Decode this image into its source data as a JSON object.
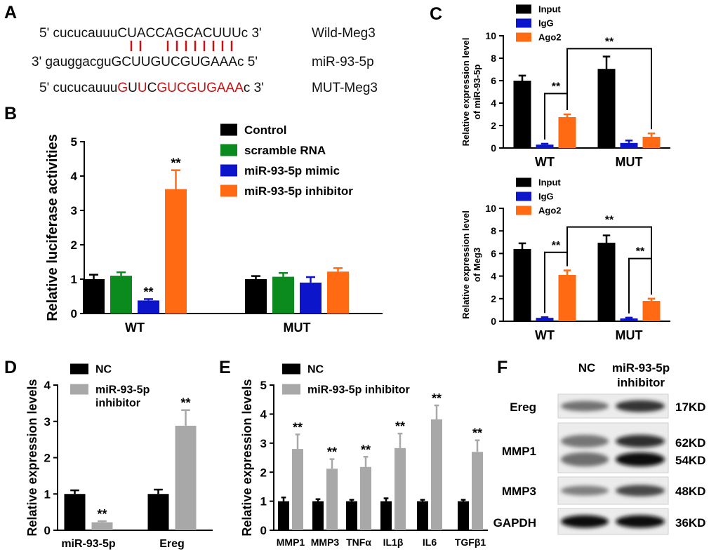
{
  "colors": {
    "black": "#000000",
    "green": "#0b8a1e",
    "blue": "#0c15c9",
    "orange": "#ff6a13",
    "gray": "#a8a8a8",
    "red_seq": "#c01515",
    "seq_text": "#111111"
  },
  "panel_a": {
    "letter": "A",
    "rows": [
      {
        "prefix": "5' cucucauuu",
        "segments": [
          {
            "t": "CUACCAGCACUUU",
            "red": false
          },
          {
            "t": "c",
            "red": false
          }
        ],
        "suffix": " 3'",
        "name": "Wild-Meg3"
      },
      {
        "prefix": "3' gauggacgu",
        "segments": [
          {
            "t": "GCUUGUCGUGAAA",
            "red": false
          },
          {
            "t": "c",
            "red": false
          }
        ],
        "suffix": " 5'",
        "name": "miR-93-5p"
      },
      {
        "prefix": "5' cucucauuu",
        "segments": [
          {
            "t": "G",
            "red": true
          },
          {
            "t": "U",
            "red": false
          },
          {
            "t": "U",
            "red": true
          },
          {
            "t": "C",
            "red": false
          },
          {
            "t": "GUCGUGAAA",
            "red": true
          },
          {
            "t": "c",
            "red": false
          }
        ],
        "suffix": " 3'",
        "name": "MUT-Meg3"
      }
    ],
    "pairing_positions": [
      0,
      1,
      4,
      5,
      6,
      7,
      8,
      9,
      10,
      11
    ]
  },
  "panel_f": {
    "letter": "F",
    "columns": [
      "NC",
      "miR-93-5p",
      "inhibitor"
    ],
    "rows": [
      {
        "protein": "Ereg",
        "sizes": [
          "17KD"
        ],
        "nc": 0.45,
        "inh": 0.8
      },
      {
        "protein": "MMP1",
        "sizes": [
          "62KD",
          "54KD"
        ],
        "nc": 0.5,
        "inh": 1.0
      },
      {
        "protein": "MMP3",
        "sizes": [
          "48KD"
        ],
        "nc": 0.35,
        "inh": 0.7
      },
      {
        "protein": "GAPDH",
        "sizes": [
          "36KD"
        ],
        "nc": 1.0,
        "inh": 1.0
      }
    ]
  },
  "chart_data": [
    {
      "panel": "B",
      "type": "bar",
      "title": "",
      "xlabel": "",
      "ylabel": "Relative luciferase activities",
      "ylim": [
        0,
        5
      ],
      "yticks": [
        "0",
        "1",
        "2",
        "3",
        "4",
        "5"
      ],
      "categories": [
        "WT",
        "MUT"
      ],
      "legend_position": "top-right",
      "series": [
        {
          "name": "Control",
          "color": "#000000",
          "values": [
            1.0,
            1.0
          ],
          "errors": [
            0.13,
            0.09
          ]
        },
        {
          "name": "scramble RNA",
          "color": "#0b8a1e",
          "values": [
            1.1,
            1.07
          ],
          "errors": [
            0.1,
            0.11
          ]
        },
        {
          "name": "miR-93-5p mimic",
          "color": "#0c15c9",
          "values": [
            0.38,
            0.9
          ],
          "errors": [
            0.04,
            0.16
          ]
        },
        {
          "name": "miR-93-5p inhibitor",
          "color": "#ff6a13",
          "values": [
            3.62,
            1.22
          ],
          "errors": [
            0.55,
            0.1
          ]
        }
      ],
      "significance": [
        {
          "text": "**",
          "category": 0,
          "series": 2
        },
        {
          "text": "**",
          "category": 0,
          "series": 3
        }
      ],
      "brackets": []
    },
    {
      "panel": "C",
      "type": "bar",
      "title": "",
      "xlabel": "",
      "ylabel": "Relative expression level of miR-93-5p",
      "ylim": [
        0,
        10
      ],
      "yticks": [
        "0",
        "2",
        "4",
        "6",
        "8",
        "10"
      ],
      "categories": [
        "WT",
        "MUT"
      ],
      "legend_position": "top-left",
      "series": [
        {
          "name": "Input",
          "color": "#000000",
          "values": [
            6.0,
            7.05
          ],
          "errors": [
            0.45,
            1.1
          ]
        },
        {
          "name": "IgG",
          "color": "#0c15c9",
          "values": [
            0.3,
            0.45
          ],
          "errors": [
            0.08,
            0.22
          ]
        },
        {
          "name": "Ago2",
          "color": "#ff6a13",
          "values": [
            2.75,
            1.0
          ],
          "errors": [
            0.25,
            0.3
          ]
        }
      ],
      "significance": [],
      "brackets": [
        {
          "text": "**",
          "from": [
            0,
            1
          ],
          "to": [
            0,
            2
          ],
          "y": 4.85
        },
        {
          "text": "**",
          "from": [
            0,
            2
          ],
          "to": [
            1,
            2
          ],
          "y": 8.85
        }
      ]
    },
    {
      "panel": "C2",
      "type": "bar",
      "title": "",
      "xlabel": "",
      "ylabel": "Relative expression level of Meg3",
      "ylim": [
        0,
        10
      ],
      "yticks": [
        "0",
        "2",
        "4",
        "6",
        "8",
        "10"
      ],
      "categories": [
        "WT",
        "MUT"
      ],
      "legend_position": "top-left",
      "series": [
        {
          "name": "Input",
          "color": "#000000",
          "values": [
            6.4,
            6.95
          ],
          "errors": [
            0.5,
            0.65
          ]
        },
        {
          "name": "IgG",
          "color": "#0c15c9",
          "values": [
            0.3,
            0.25
          ],
          "errors": [
            0.06,
            0.07
          ]
        },
        {
          "name": "Ago2",
          "color": "#ff6a13",
          "values": [
            4.1,
            1.8
          ],
          "errors": [
            0.4,
            0.2
          ]
        }
      ],
      "significance": [],
      "brackets": [
        {
          "text": "**",
          "from": [
            0,
            1
          ],
          "to": [
            0,
            2
          ],
          "y": 6.1
        },
        {
          "text": "**",
          "from": [
            0,
            2
          ],
          "to": [
            1,
            2
          ],
          "y": 8.35
        },
        {
          "text": "**",
          "from": [
            1,
            1
          ],
          "to": [
            1,
            2
          ],
          "y": 5.55
        }
      ]
    },
    {
      "panel": "D",
      "type": "bar",
      "title": "",
      "xlabel": "",
      "ylabel": "Relative expression levels",
      "ylim": [
        0,
        4
      ],
      "yticks": [
        "0",
        "1",
        "2",
        "3",
        "4"
      ],
      "categories": [
        "miR-93-5p",
        "Ereg"
      ],
      "legend_position": "top-left",
      "series": [
        {
          "name": "NC",
          "color": "#000000",
          "values": [
            1.0,
            1.0
          ],
          "errors": [
            0.1,
            0.12
          ]
        },
        {
          "name": "miR-93-5p inhibitor",
          "color": "#a8a8a8",
          "values": [
            0.22,
            2.88
          ],
          "errors": [
            0.03,
            0.43
          ]
        }
      ],
      "significance": [
        {
          "text": "**",
          "category": 0,
          "series": 1
        },
        {
          "text": "**",
          "category": 1,
          "series": 1
        }
      ],
      "brackets": []
    },
    {
      "panel": "E",
      "type": "bar",
      "title": "",
      "xlabel": "",
      "ylabel": "Relative expression levels",
      "ylim": [
        0,
        5
      ],
      "yticks": [
        "0",
        "1",
        "2",
        "3",
        "4",
        "5"
      ],
      "categories": [
        "MMP1",
        "MMP3",
        "TNFα",
        "IL1β",
        "IL6",
        "TGFβ1"
      ],
      "legend_position": "top-left",
      "series": [
        {
          "name": "NC",
          "color": "#000000",
          "values": [
            1.0,
            1.0,
            1.0,
            1.0,
            1.0,
            1.0
          ],
          "errors": [
            0.13,
            0.07,
            0.05,
            0.1,
            0.05,
            0.05
          ]
        },
        {
          "name": "miR-93-5p inhibitor",
          "color": "#a8a8a8",
          "values": [
            2.8,
            2.12,
            2.18,
            2.83,
            3.82,
            2.7
          ],
          "errors": [
            0.5,
            0.33,
            0.35,
            0.5,
            0.48,
            0.4
          ]
        }
      ],
      "significance": [
        {
          "text": "**",
          "category": 0,
          "series": 1
        },
        {
          "text": "**",
          "category": 1,
          "series": 1
        },
        {
          "text": "**",
          "category": 2,
          "series": 1
        },
        {
          "text": "**",
          "category": 3,
          "series": 1
        },
        {
          "text": "**",
          "category": 4,
          "series": 1
        },
        {
          "text": "**",
          "category": 5,
          "series": 1
        }
      ],
      "brackets": []
    }
  ]
}
